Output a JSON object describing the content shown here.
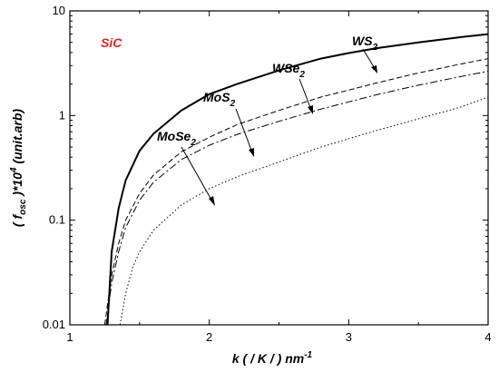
{
  "chart_data": {
    "type": "line",
    "annotation": "SiC",
    "annotation_color": "#e02020",
    "xlabel": {
      "k": "k",
      "middle": " ( / K / ) nm",
      "sup": "-1"
    },
    "ylabel": {
      "open": "( ",
      "f": "f",
      "sub": "osc",
      "middle": " )*10",
      "sup": "4",
      "unit": " (unit.arb)"
    },
    "xlim": [
      1,
      4
    ],
    "ylim": [
      0.01,
      10
    ],
    "yscale": "log",
    "x_ticks": [
      1,
      2,
      3,
      4
    ],
    "x_tick_labels": [
      "1",
      "2",
      "3",
      "4"
    ],
    "y_ticks": [
      0.01,
      0.1,
      1,
      10
    ],
    "y_tick_labels": [
      "0.01",
      "0.1",
      "1",
      "10"
    ],
    "grid": false,
    "series": [
      {
        "name": "WS2",
        "label_main": "WS",
        "label_sub": "2",
        "style": "solid",
        "width": 2,
        "x": [
          1.27,
          1.3,
          1.35,
          1.4,
          1.5,
          1.6,
          1.8,
          2.0,
          2.2,
          2.5,
          2.8,
          3.0,
          3.2,
          3.5,
          3.8,
          4.0
        ],
        "y": [
          0.01,
          0.05,
          0.13,
          0.24,
          0.46,
          0.67,
          1.12,
          1.6,
          2.0,
          2.7,
          3.5,
          3.95,
          4.4,
          5.0,
          5.6,
          6.0
        ]
      },
      {
        "name": "WSe2",
        "label_main": "WSe",
        "label_sub": "2",
        "style": "dashed",
        "width": 1,
        "x": [
          1.25,
          1.3,
          1.35,
          1.4,
          1.5,
          1.6,
          1.8,
          2.0,
          2.2,
          2.5,
          2.8,
          3.0,
          3.2,
          3.5,
          3.8,
          4.0
        ],
        "y": [
          0.01,
          0.03,
          0.06,
          0.1,
          0.18,
          0.27,
          0.45,
          0.62,
          0.82,
          1.12,
          1.5,
          1.75,
          2.05,
          2.55,
          3.1,
          3.5
        ]
      },
      {
        "name": "MoS2",
        "label_main": "MoS",
        "label_sub": "2",
        "style": "dashdot",
        "width": 1,
        "x": [
          1.26,
          1.3,
          1.35,
          1.4,
          1.5,
          1.6,
          1.8,
          2.0,
          2.2,
          2.5,
          2.8,
          3.0,
          3.2,
          3.5,
          3.8,
          4.0
        ],
        "y": [
          0.01,
          0.025,
          0.05,
          0.085,
          0.155,
          0.23,
          0.38,
          0.52,
          0.66,
          0.88,
          1.15,
          1.35,
          1.58,
          1.95,
          2.35,
          2.65
        ]
      },
      {
        "name": "MoSe2",
        "label_main": "MoSe",
        "label_sub": "2",
        "style": "dotted",
        "width": 1,
        "x": [
          1.36,
          1.4,
          1.45,
          1.5,
          1.6,
          1.8,
          2.0,
          2.2,
          2.5,
          2.8,
          3.0,
          3.2,
          3.5,
          3.8,
          4.0
        ],
        "y": [
          0.01,
          0.02,
          0.035,
          0.05,
          0.08,
          0.14,
          0.2,
          0.26,
          0.36,
          0.5,
          0.6,
          0.72,
          0.93,
          1.2,
          1.5
        ]
      }
    ]
  }
}
